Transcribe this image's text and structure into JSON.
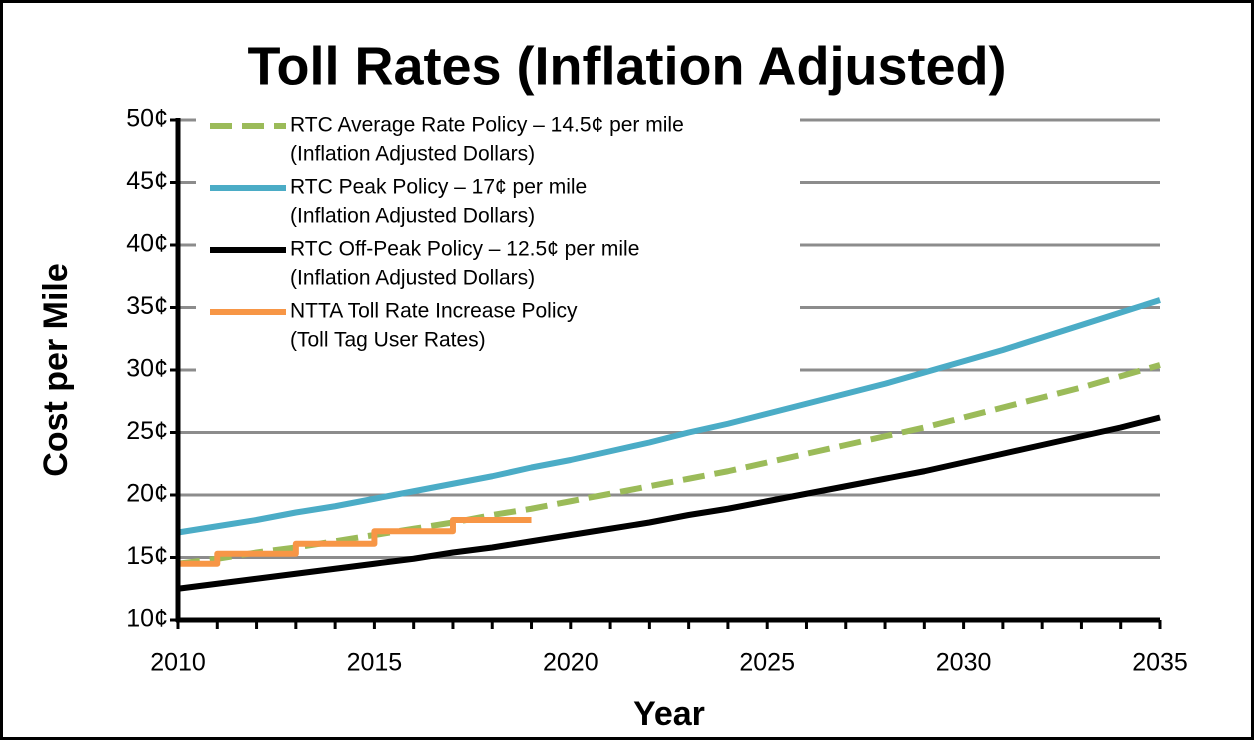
{
  "chart_data": {
    "type": "line",
    "title": "Toll Rates (Inflation Adjusted)",
    "x_label": "Year",
    "y_label": "Cost per Mile",
    "x": [
      2010,
      2011,
      2012,
      2013,
      2014,
      2015,
      2016,
      2017,
      2018,
      2019,
      2020,
      2021,
      2022,
      2023,
      2024,
      2025,
      2026,
      2027,
      2028,
      2029,
      2030,
      2031,
      2032,
      2033,
      2034,
      2035
    ],
    "xlim": [
      2010,
      2035
    ],
    "xticks": [
      2010,
      2015,
      2020,
      2025,
      2030,
      2035
    ],
    "ylim": [
      10,
      50
    ],
    "yticks": [
      {
        "value": 10,
        "label": "10¢"
      },
      {
        "value": 15,
        "label": "15¢"
      },
      {
        "value": 20,
        "label": "20¢"
      },
      {
        "value": 25,
        "label": "25¢"
      },
      {
        "value": 30,
        "label": "30¢"
      },
      {
        "value": 35,
        "label": "35¢"
      },
      {
        "value": 40,
        "label": "40¢"
      },
      {
        "value": 45,
        "label": "45¢"
      },
      {
        "value": 50,
        "label": "50¢"
      }
    ],
    "grid": true,
    "legend": "top-left",
    "series": [
      {
        "name": "RTC Average Rate Policy – 14.5¢ per mile",
        "note": "(Inflation Adjusted Dollars)",
        "color": "#9bbb59",
        "dashed": true,
        "values": [
          14.5,
          14.9,
          15.4,
          15.8,
          16.3,
          16.8,
          17.3,
          17.8,
          18.4,
          18.9,
          19.5,
          20.1,
          20.7,
          21.3,
          21.9,
          22.6,
          23.3,
          24.0,
          24.7,
          25.4,
          26.2,
          27.0,
          27.8,
          28.6,
          29.5,
          30.4
        ]
      },
      {
        "name": "RTC Peak Policy – 17¢ per mile",
        "note": "(Inflation Adjusted Dollars)",
        "color": "#4bacc6",
        "values": [
          17,
          17.5,
          18.0,
          18.6,
          19.1,
          19.7,
          20.3,
          20.9,
          21.5,
          22.2,
          22.8,
          23.5,
          24.2,
          25.0,
          25.7,
          26.5,
          27.3,
          28.1,
          28.9,
          29.8,
          30.7,
          31.6,
          32.6,
          33.6,
          34.6,
          35.6
        ]
      },
      {
        "name": "RTC Off-Peak Policy – 12.5¢ per mile",
        "note": "(Inflation Adjusted Dollars)",
        "color": "#000000",
        "values": [
          12.5,
          12.9,
          13.3,
          13.7,
          14.1,
          14.5,
          14.9,
          15.4,
          15.8,
          16.3,
          16.8,
          17.3,
          17.8,
          18.4,
          18.9,
          19.5,
          20.1,
          20.7,
          21.3,
          21.9,
          22.6,
          23.3,
          24.0,
          24.7,
          25.4,
          26.2
        ]
      },
      {
        "name": "NTTA Toll Rate Increase Policy",
        "note": "(Toll Tag User Rates)",
        "color": "#f79646",
        "step": true,
        "x": [
          2010,
          2011,
          2013,
          2015,
          2017,
          2019
        ],
        "values": [
          14.5,
          15.3,
          16.1,
          17.1,
          18.0,
          18.0
        ]
      }
    ]
  }
}
